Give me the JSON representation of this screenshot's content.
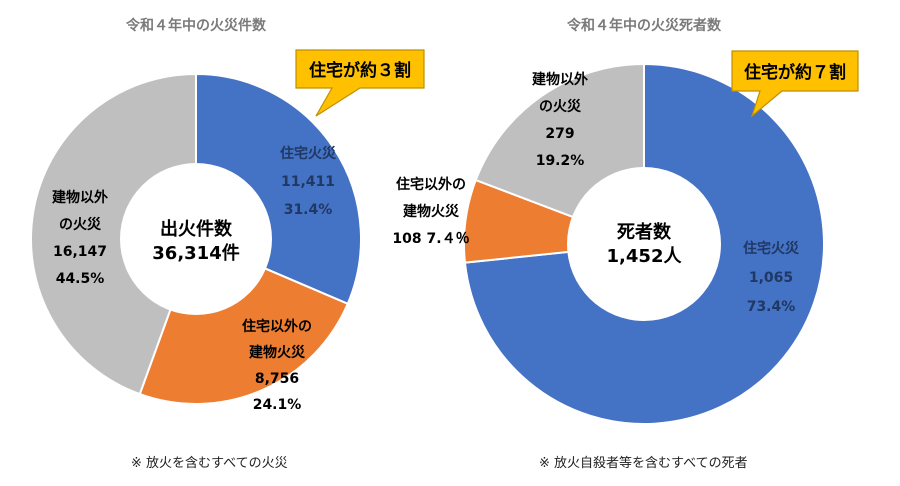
{
  "chart_data": [
    {
      "type": "pie",
      "donut": true,
      "title": "令和４年中の火災件数",
      "center_label": [
        "出火件数",
        "36,314件"
      ],
      "callout": "住宅が約３割",
      "footnote": "※ 放火を含むすべての火災",
      "slices": [
        {
          "lines": [
            "住宅火災",
            "11,411",
            "31.4%"
          ],
          "value": 11411,
          "percent": 31.4,
          "color": "#4472c4"
        },
        {
          "lines": [
            "住宅以外の",
            "建物火災",
            "8,756",
            "24.1%"
          ],
          "value": 8756,
          "percent": 24.1,
          "color": "#ed7d31"
        },
        {
          "lines": [
            "建物以外",
            "の火災",
            "16,147",
            "44.5%"
          ],
          "value": 16147,
          "percent": 44.5,
          "color": "#bfbfbf"
        }
      ]
    },
    {
      "type": "pie",
      "donut": true,
      "title": "令和４年中の火災死者数",
      "center_label": [
        "死者数",
        "1,452人"
      ],
      "callout": "住宅が約７割",
      "footnote": "※ 放火自殺者等を含むすべての死者",
      "slices": [
        {
          "lines": [
            "住宅火災",
            "1,065",
            "73.4%"
          ],
          "value": 1065,
          "percent": 73.4,
          "color": "#4472c4"
        },
        {
          "lines": [
            "住宅以外の",
            "建物火災",
            "108 7.４％"
          ],
          "value": 108,
          "percent": 7.4,
          "color": "#ed7d31"
        },
        {
          "lines": [
            "建物以外",
            "の火災",
            "279",
            "19.2%"
          ],
          "value": 279,
          "percent": 19.2,
          "color": "#bfbfbf"
        }
      ]
    }
  ],
  "colors": {
    "callout_fill": "#ffc000",
    "callout_stroke": "#bf9000"
  }
}
